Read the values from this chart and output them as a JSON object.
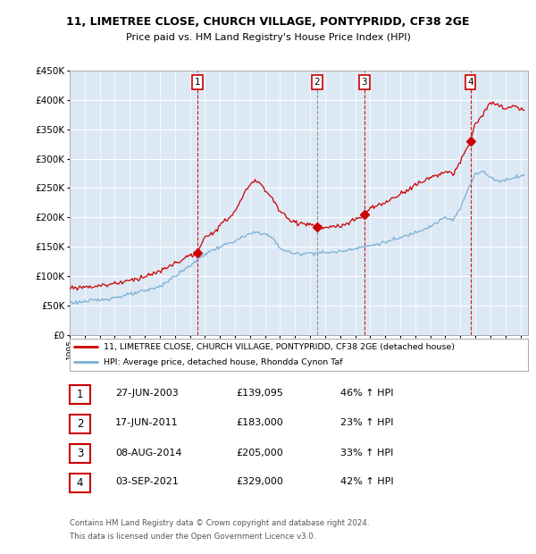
{
  "title_line1": "11, LIMETREE CLOSE, CHURCH VILLAGE, PONTYPRIDD, CF38 2GE",
  "title_line2": "Price paid vs. HM Land Registry's House Price Index (HPI)",
  "plot_bg_color": "#dce9f5",
  "hpi_color": "#7bafd4",
  "price_color": "#cc0000",
  "ylim": [
    0,
    450000
  ],
  "yticks": [
    0,
    50000,
    100000,
    150000,
    200000,
    250000,
    300000,
    350000,
    400000,
    450000
  ],
  "xlim": [
    1995,
    2025.5
  ],
  "transactions": [
    {
      "label": "1",
      "date": "27-JUN-2003",
      "price": 139095,
      "pct": "46%",
      "x_year": 2003.5
    },
    {
      "label": "2",
      "date": "17-JUN-2011",
      "price": 183000,
      "pct": "23%",
      "x_year": 2011.46
    },
    {
      "label": "3",
      "date": "08-AUG-2014",
      "price": 205000,
      "pct": "33%",
      "x_year": 2014.6
    },
    {
      "label": "4",
      "date": "03-SEP-2021",
      "price": 329000,
      "pct": "42%",
      "x_year": 2021.67
    }
  ],
  "legend_label_red": "11, LIMETREE CLOSE, CHURCH VILLAGE, PONTYPRIDD, CF38 2GE (detached house)",
  "legend_label_blue": "HPI: Average price, detached house, Rhondda Cynon Taf",
  "footer_line1": "Contains HM Land Registry data © Crown copyright and database right 2024.",
  "footer_line2": "This data is licensed under the Open Government Licence v3.0."
}
